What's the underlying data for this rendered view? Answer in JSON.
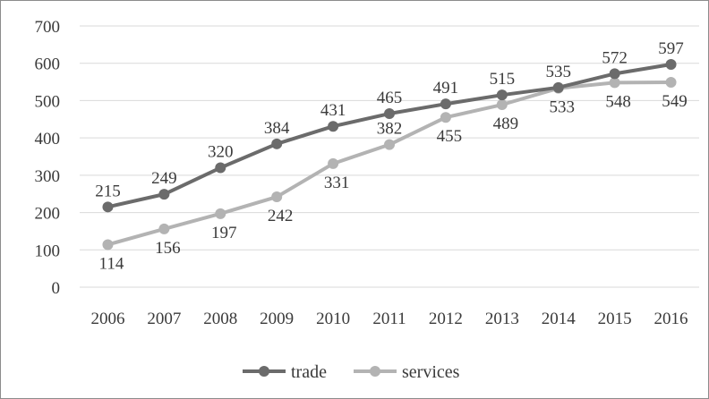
{
  "chart_data": {
    "type": "line",
    "title": "",
    "xlabel": "",
    "ylabel": "",
    "categories": [
      "2006",
      "2007",
      "2008",
      "2009",
      "2010",
      "2011",
      "2012",
      "2013",
      "2014",
      "2015",
      "2016"
    ],
    "ylim": [
      0,
      700
    ],
    "yticks": [
      0,
      100,
      200,
      300,
      400,
      500,
      600,
      700
    ],
    "grid": true,
    "legend_position": "bottom",
    "series": [
      {
        "name": "trade",
        "color": "#6b6b6b",
        "values": [
          215,
          249,
          320,
          384,
          431,
          465,
          491,
          515,
          535,
          572,
          597
        ],
        "label_side": [
          "above",
          "above",
          "above",
          "above",
          "above",
          "above",
          "above",
          "above",
          "above",
          "above",
          "above"
        ]
      },
      {
        "name": "services",
        "color": "#b3b3b3",
        "values": [
          114,
          156,
          197,
          242,
          331,
          382,
          455,
          489,
          533,
          548,
          549
        ],
        "label_side": [
          "below",
          "below",
          "below",
          "below",
          "below",
          "above",
          "below",
          "below",
          "below",
          "below",
          "below"
        ]
      }
    ]
  }
}
